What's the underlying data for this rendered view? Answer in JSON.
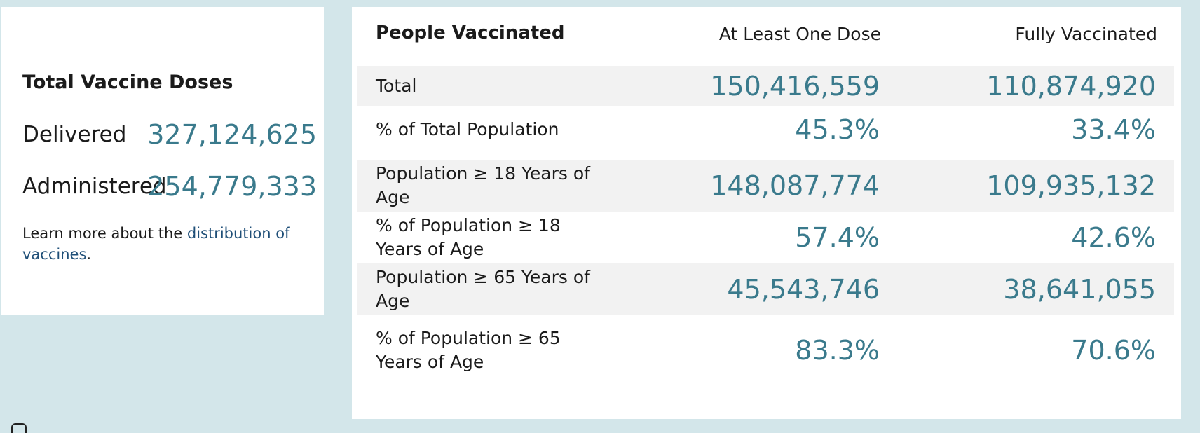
{
  "total_doses": {
    "title": "Total Vaccine Doses",
    "delivered_label": "Delivered",
    "delivered_value": "327,124,625",
    "administered_label": "Administered",
    "administered_value": "254,779,333",
    "learn_more_prefix": "Learn more about the ",
    "learn_more_link": "distribution of vaccines",
    "learn_more_suffix": "."
  },
  "people_vaccinated": {
    "headers": [
      "People Vaccinated",
      "At Least One Dose",
      "Fully Vaccinated"
    ],
    "rows": [
      {
        "label": "Total",
        "one_dose": "150,416,559",
        "fully": "110,874,920"
      },
      {
        "label": "% of Total Population",
        "one_dose": "45.3%",
        "fully": "33.4%"
      },
      {
        "label": "Population ≥ 18 Years of Age",
        "one_dose": "148,087,774",
        "fully": "109,935,132"
      },
      {
        "label": "% of Population ≥ 18 Years of Age",
        "one_dose": "57.4%",
        "fully": "42.6%"
      },
      {
        "label": "Population ≥ 65 Years of Age",
        "one_dose": "45,543,746",
        "fully": "38,641,055"
      },
      {
        "label": "% of Population ≥ 65 Years of Age",
        "one_dose": "83.3%",
        "fully": "70.6%"
      }
    ]
  },
  "colors": {
    "page_background": "#d3e6ea",
    "value_text": "#3a7a8c",
    "link": "#1f4f78",
    "row_shade": "#f2f2f2"
  }
}
